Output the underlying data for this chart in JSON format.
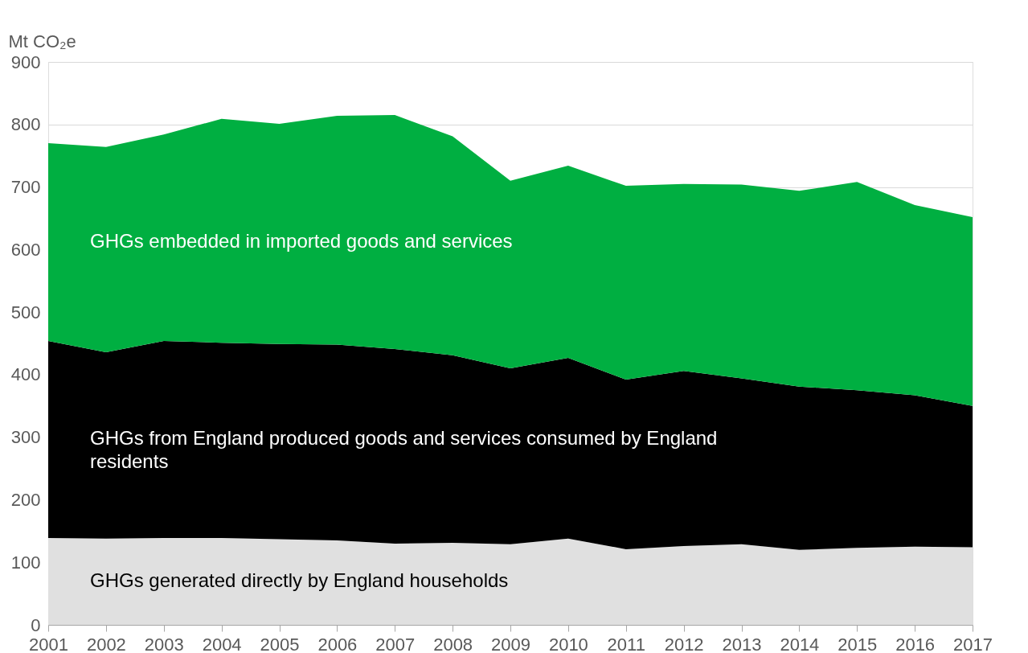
{
  "chart_data": {
    "type": "area",
    "stacked": true,
    "ylabel": "Mt CO₂e",
    "x": [
      2001,
      2002,
      2003,
      2004,
      2005,
      2006,
      2007,
      2008,
      2009,
      2010,
      2011,
      2012,
      2013,
      2014,
      2015,
      2016,
      2017
    ],
    "series": [
      {
        "name": "GHGs generated directly by England households",
        "color": "#e0e0e0",
        "values": [
          139,
          138,
          139,
          139,
          137,
          135,
          130,
          131,
          129,
          138,
          121,
          126,
          129,
          120,
          123,
          125,
          124
        ]
      },
      {
        "name": "GHGs from England produced goods and services consumed by England residents",
        "color": "#000000",
        "values": [
          315,
          298,
          315,
          312,
          312,
          313,
          311,
          300,
          281,
          289,
          271,
          280,
          265,
          261,
          252,
          242,
          226
        ]
      },
      {
        "name": "GHGs embedded in imported goods and services",
        "color": "#00af41",
        "values": [
          316,
          328,
          330,
          358,
          352,
          366,
          374,
          350,
          300,
          307,
          310,
          299,
          310,
          313,
          333,
          304,
          302
        ]
      }
    ],
    "xlim": [
      2001,
      2017
    ],
    "xticks": [
      2001,
      2002,
      2003,
      2004,
      2005,
      2006,
      2007,
      2008,
      2009,
      2010,
      2011,
      2012,
      2013,
      2014,
      2015,
      2016,
      2017
    ],
    "ylim": [
      0,
      900
    ],
    "yticks": [
      0,
      100,
      200,
      300,
      400,
      500,
      600,
      700,
      800,
      900
    ],
    "grid": "y",
    "legend": false
  }
}
